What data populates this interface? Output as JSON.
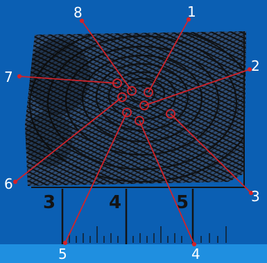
{
  "callouts": [
    {
      "id": "1",
      "label": "1"
    },
    {
      "id": "2",
      "label": "2"
    },
    {
      "id": "3",
      "label": "3"
    },
    {
      "id": "4",
      "label": "4"
    },
    {
      "id": "5",
      "label": "5"
    },
    {
      "id": "6",
      "label": "6"
    },
    {
      "id": "7",
      "label": "7"
    },
    {
      "id": "8",
      "label": "8"
    }
  ],
  "ruler": {
    "labels": [
      "3",
      "4",
      "5"
    ]
  },
  "colors": {
    "background": "#0b5fb3",
    "leader": "#d2232a",
    "label": "#ffffff",
    "print": "#141414"
  }
}
